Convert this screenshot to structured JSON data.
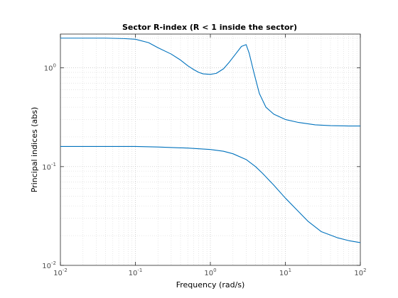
{
  "chart_data": {
    "type": "line",
    "title": "Sector R-index (R < 1 inside the sector)",
    "xlabel": "Frequency (rad/s)",
    "ylabel": "Principal indices (abs)",
    "xscale": "log",
    "yscale": "log",
    "xlim": [
      0.01,
      100
    ],
    "ylim": [
      0.01,
      2.2
    ],
    "grid": "major and minor, dotted",
    "line_color": "#0072bd",
    "x_ticks": [
      {
        "value": 0.01,
        "base": "10",
        "exp": "-2"
      },
      {
        "value": 0.1,
        "base": "10",
        "exp": "-1"
      },
      {
        "value": 1,
        "base": "10",
        "exp": "0"
      },
      {
        "value": 10,
        "base": "10",
        "exp": "1"
      },
      {
        "value": 100,
        "base": "10",
        "exp": "2"
      }
    ],
    "y_ticks": [
      {
        "value": 0.01,
        "base": "10",
        "exp": "-2"
      },
      {
        "value": 0.1,
        "base": "10",
        "exp": "-1"
      },
      {
        "value": 1,
        "base": "10",
        "exp": "0"
      }
    ],
    "series": [
      {
        "x": [
          0.01,
          0.02,
          0.04,
          0.07,
          0.1,
          0.15,
          0.2,
          0.3,
          0.4,
          0.5,
          0.6,
          0.7,
          0.8,
          1.0,
          1.2,
          1.5,
          1.8,
          2.2,
          2.6,
          3.0,
          3.3,
          3.8,
          4.5,
          5.5,
          7.0,
          10,
          15,
          25,
          40,
          70,
          100
        ],
        "y": [
          2.0,
          2.0,
          2.0,
          1.98,
          1.95,
          1.8,
          1.6,
          1.38,
          1.2,
          1.05,
          0.96,
          0.9,
          0.87,
          0.86,
          0.88,
          0.98,
          1.15,
          1.4,
          1.65,
          1.72,
          1.4,
          0.9,
          0.55,
          0.4,
          0.34,
          0.3,
          0.28,
          0.265,
          0.26,
          0.258,
          0.258
        ]
      },
      {
        "x": [
          0.01,
          0.05,
          0.1,
          0.2,
          0.5,
          1.0,
          1.5,
          2.0,
          3.0,
          4.0,
          5.0,
          7.0,
          10,
          15,
          20,
          30,
          50,
          70,
          100
        ],
        "y": [
          0.16,
          0.16,
          0.16,
          0.158,
          0.154,
          0.149,
          0.143,
          0.135,
          0.118,
          0.1,
          0.085,
          0.065,
          0.048,
          0.035,
          0.028,
          0.022,
          0.019,
          0.0178,
          0.017
        ]
      }
    ]
  }
}
